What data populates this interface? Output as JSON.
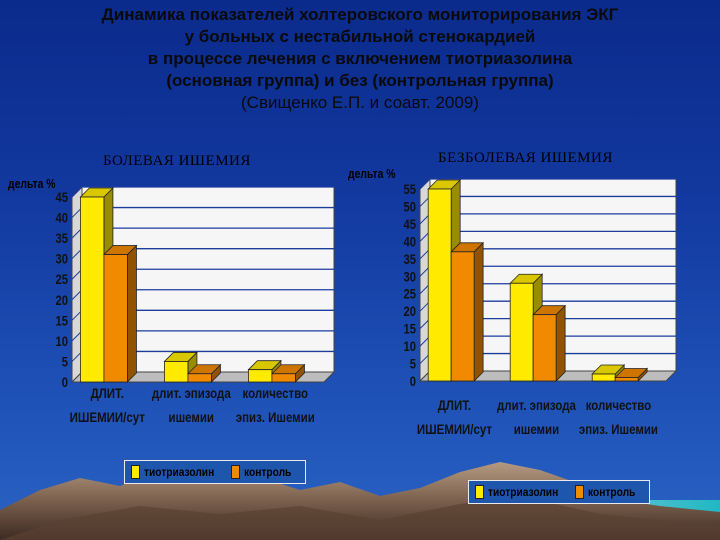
{
  "title": {
    "line1": "Динамика показателей холтеровского мониторирования ЭКГ",
    "line2": "у больных с нестабильной стенокардией",
    "line3": "в процессе лечения с включением тиотриазолина",
    "line4": "(основная группа) и без (контрольная группа)",
    "line5": "(Свищенко Е.П.  и соавт. 2009)"
  },
  "colors": {
    "series1": "#ffea00",
    "series2": "#f28a00",
    "plot_bg": "#f6f6f6",
    "grid": "#1c3c9c"
  },
  "chart_data": [
    {
      "type": "bar",
      "title": "БОЛЕВАЯ ИШЕМИЯ",
      "ylabel": "дельта %",
      "ylim": [
        0,
        45
      ],
      "yticks": [
        "0",
        "5",
        "10",
        "15",
        "20",
        "25",
        "30",
        "35",
        "40",
        "45"
      ],
      "categories": [
        [
          "ДЛИТ.",
          "ИШЕМИИ/сут"
        ],
        [
          "длит. эпизода",
          "ишемии"
        ],
        [
          "количество",
          "эпиз. Ишемии"
        ]
      ],
      "series": [
        {
          "name": "тиотриазолин",
          "values": [
            45,
            5,
            3
          ]
        },
        {
          "name": "контроль",
          "values": [
            31,
            2,
            2
          ]
        }
      ],
      "grid": true,
      "legend": "bottom"
    },
    {
      "type": "bar",
      "title": "БЕЗБОЛЕВАЯ ИШЕМИЯ",
      "ylabel": "дельта %",
      "ylim": [
        0,
        55
      ],
      "yticks": [
        "0",
        "5",
        "10",
        "15",
        "20",
        "25",
        "30",
        "35",
        "40",
        "45",
        "50",
        "55"
      ],
      "categories": [
        [
          "ДЛИТ.",
          "ИШЕМИИ/сут"
        ],
        [
          "длит. эпизода",
          "ишемии"
        ],
        [
          "количество",
          "эпиз. Ишемии"
        ]
      ],
      "series": [
        {
          "name": "тиотриазолин",
          "values": [
            55,
            28,
            2
          ]
        },
        {
          "name": "контроль",
          "values": [
            37,
            19,
            1
          ]
        }
      ],
      "grid": true,
      "legend": "bottom"
    }
  ]
}
